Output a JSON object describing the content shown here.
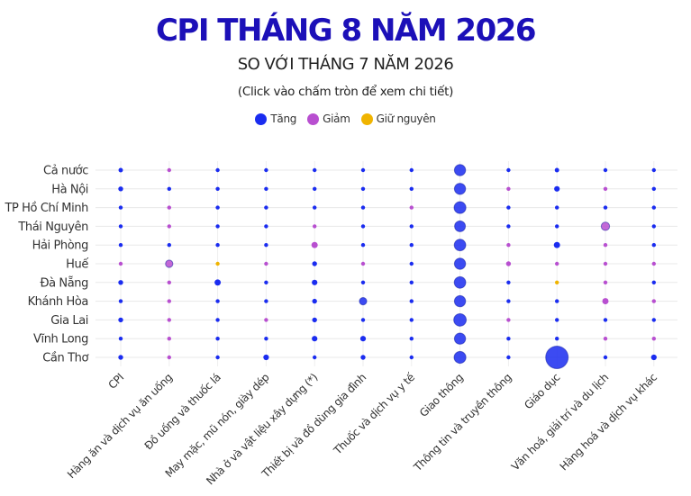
{
  "title": "CPI THÁNG 8 NĂM 2026",
  "subtitle": "SO VỚI THÁNG 7 NĂM 2026",
  "hint": "(Click vào chấm tròn để xem chi tiết)",
  "colors": {
    "increase": "#1a2cf0",
    "decrease": "#b84fd0",
    "unchanged": "#f0b400"
  },
  "legend": [
    {
      "label": "Tăng",
      "key": "increase"
    },
    {
      "label": "Giảm",
      "key": "decrease"
    },
    {
      "label": "Giữ nguyên",
      "key": "unchanged"
    }
  ],
  "chart_data": {
    "type": "scatter",
    "categories_x": [
      "CPI",
      "Hàng ăn và dịch vụ ăn uống",
      "Đồ uống và thuốc lá",
      "May mặc, mũ nón, giày dép",
      "Nhà ở và vật liệu xây dựng (*)",
      "Thiết bị và đồ dùng gia đình",
      "Thuốc và dịch vụ y tế",
      "Giao thông",
      "Thông tin và truyền thông",
      "Giáo dục",
      "Văn hoá, giải trí và du lịch",
      "Hàng hoá và dịch vụ khác"
    ],
    "categories_y": [
      "Cả nước",
      "Hà Nội",
      "TP Hồ Chí Minh",
      "Thái Nguyên",
      "Hải Phòng",
      "Huế",
      "Đà Nẵng",
      "Khánh Hòa",
      "Gia Lai",
      "Vĩnh Long",
      "Cần Thơ"
    ],
    "grid": true,
    "legend_position": "top-center",
    "points": [
      [
        "Cả nước",
        [
          [
            "increase",
            0.25
          ],
          [
            "decrease",
            0.05
          ],
          [
            "increase",
            0.05
          ],
          [
            "increase",
            0.05
          ],
          [
            "increase",
            0.05
          ],
          [
            "increase",
            0.05
          ],
          [
            "increase",
            0.05
          ],
          [
            "increase",
            1.6
          ],
          [
            "increase",
            0.05
          ],
          [
            "increase",
            0.25
          ],
          [
            "increase",
            0.05
          ],
          [
            "increase",
            0.05
          ]
        ]
      ],
      [
        "Hà Nội",
        [
          [
            "increase",
            0.3
          ],
          [
            "increase",
            0.05
          ],
          [
            "increase",
            0.1
          ],
          [
            "increase",
            0.05
          ],
          [
            "increase",
            0.05
          ],
          [
            "increase",
            0.05
          ],
          [
            "increase",
            0.05
          ],
          [
            "increase",
            1.6
          ],
          [
            "decrease",
            0.05
          ],
          [
            "increase",
            0.4
          ],
          [
            "decrease",
            0.05
          ],
          [
            "increase",
            0.05
          ]
        ]
      ],
      [
        "TP Hồ Chí Minh",
        [
          [
            "increase",
            0.15
          ],
          [
            "decrease",
            0.05
          ],
          [
            "increase",
            0.05
          ],
          [
            "increase",
            0.05
          ],
          [
            "increase",
            0.05
          ],
          [
            "increase",
            0.05
          ],
          [
            "decrease",
            0.05
          ],
          [
            "increase",
            1.8
          ],
          [
            "increase",
            0.05
          ],
          [
            "increase",
            0.05
          ],
          [
            "increase",
            0.05
          ],
          [
            "increase",
            0.1
          ]
        ]
      ],
      [
        "Thái Nguyên",
        [
          [
            "increase",
            0.2
          ],
          [
            "decrease",
            0.1
          ],
          [
            "increase",
            0.05
          ],
          [
            "increase",
            0.2
          ],
          [
            "decrease",
            0.05
          ],
          [
            "increase",
            0.05
          ],
          [
            "increase",
            0.05
          ],
          [
            "increase",
            1.5
          ],
          [
            "increase",
            0.05
          ],
          [
            "increase",
            0.05
          ],
          [
            "decrease",
            0.9
          ],
          [
            "increase",
            0.1
          ]
        ]
      ],
      [
        "Hải Phòng",
        [
          [
            "increase",
            0.2
          ],
          [
            "increase",
            0.2
          ],
          [
            "increase",
            0.1
          ],
          [
            "increase",
            0.05
          ],
          [
            "decrease",
            0.5
          ],
          [
            "increase",
            0.2
          ],
          [
            "increase",
            0.05
          ],
          [
            "increase",
            1.7
          ],
          [
            "decrease",
            0.05
          ],
          [
            "increase",
            0.5
          ],
          [
            "decrease",
            0.05
          ],
          [
            "increase",
            0.05
          ]
        ]
      ],
      [
        "Huế",
        [
          [
            "decrease",
            0.1
          ],
          [
            "decrease",
            0.7
          ],
          [
            "unchanged",
            0.05
          ],
          [
            "decrease",
            0.15
          ],
          [
            "increase",
            0.3
          ],
          [
            "decrease",
            0.05
          ],
          [
            "increase",
            0.05
          ],
          [
            "increase",
            1.6
          ],
          [
            "decrease",
            0.3
          ],
          [
            "decrease",
            0.05
          ],
          [
            "decrease",
            0.05
          ],
          [
            "decrease",
            0.05
          ]
        ]
      ],
      [
        "Đà Nẵng",
        [
          [
            "increase",
            0.3
          ],
          [
            "decrease",
            0.05
          ],
          [
            "increase",
            0.5
          ],
          [
            "increase",
            0.05
          ],
          [
            "increase",
            0.4
          ],
          [
            "increase",
            0.05
          ],
          [
            "increase",
            0.05
          ],
          [
            "increase",
            1.7
          ],
          [
            "increase",
            0.05
          ],
          [
            "unchanged",
            0.05
          ],
          [
            "decrease",
            0.05
          ],
          [
            "increase",
            0.1
          ]
        ]
      ],
      [
        "Khánh Hòa",
        [
          [
            "increase",
            0.2
          ],
          [
            "decrease",
            0.05
          ],
          [
            "increase",
            0.1
          ],
          [
            "increase",
            0.05
          ],
          [
            "increase",
            0.3
          ],
          [
            "increase",
            0.7
          ],
          [
            "increase",
            0.05
          ],
          [
            "increase",
            1.6
          ],
          [
            "increase",
            0.05
          ],
          [
            "increase",
            0.05
          ],
          [
            "decrease",
            0.5
          ],
          [
            "decrease",
            0.05
          ]
        ]
      ],
      [
        "Gia Lai",
        [
          [
            "increase",
            0.3
          ],
          [
            "decrease",
            0.05
          ],
          [
            "increase",
            0.05
          ],
          [
            "decrease",
            0.05
          ],
          [
            "increase",
            0.3
          ],
          [
            "increase",
            0.05
          ],
          [
            "increase",
            0.05
          ],
          [
            "increase",
            2.0
          ],
          [
            "decrease",
            0.05
          ],
          [
            "increase",
            0.05
          ],
          [
            "increase",
            0.05
          ],
          [
            "increase",
            0.05
          ]
        ]
      ],
      [
        "Vĩnh Long",
        [
          [
            "increase",
            0.15
          ],
          [
            "decrease",
            0.05
          ],
          [
            "increase",
            0.05
          ],
          [
            "increase",
            0.05
          ],
          [
            "increase",
            0.4
          ],
          [
            "increase",
            0.4
          ],
          [
            "increase",
            0.05
          ],
          [
            "increase",
            1.6
          ],
          [
            "increase",
            0.05
          ],
          [
            "increase",
            0.05
          ],
          [
            "decrease",
            0.05
          ],
          [
            "decrease",
            0.05
          ]
        ]
      ],
      [
        "Cần Thơ",
        [
          [
            "increase",
            0.3
          ],
          [
            "decrease",
            0.05
          ],
          [
            "increase",
            0.1
          ],
          [
            "increase",
            0.4
          ],
          [
            "increase",
            0.05
          ],
          [
            "increase",
            0.3
          ],
          [
            "increase",
            0.05
          ],
          [
            "increase",
            1.8
          ],
          [
            "increase",
            0.05
          ],
          [
            "increase",
            6.5
          ],
          [
            "increase",
            0.05
          ],
          [
            "increase",
            0.4
          ]
        ]
      ]
    ]
  }
}
